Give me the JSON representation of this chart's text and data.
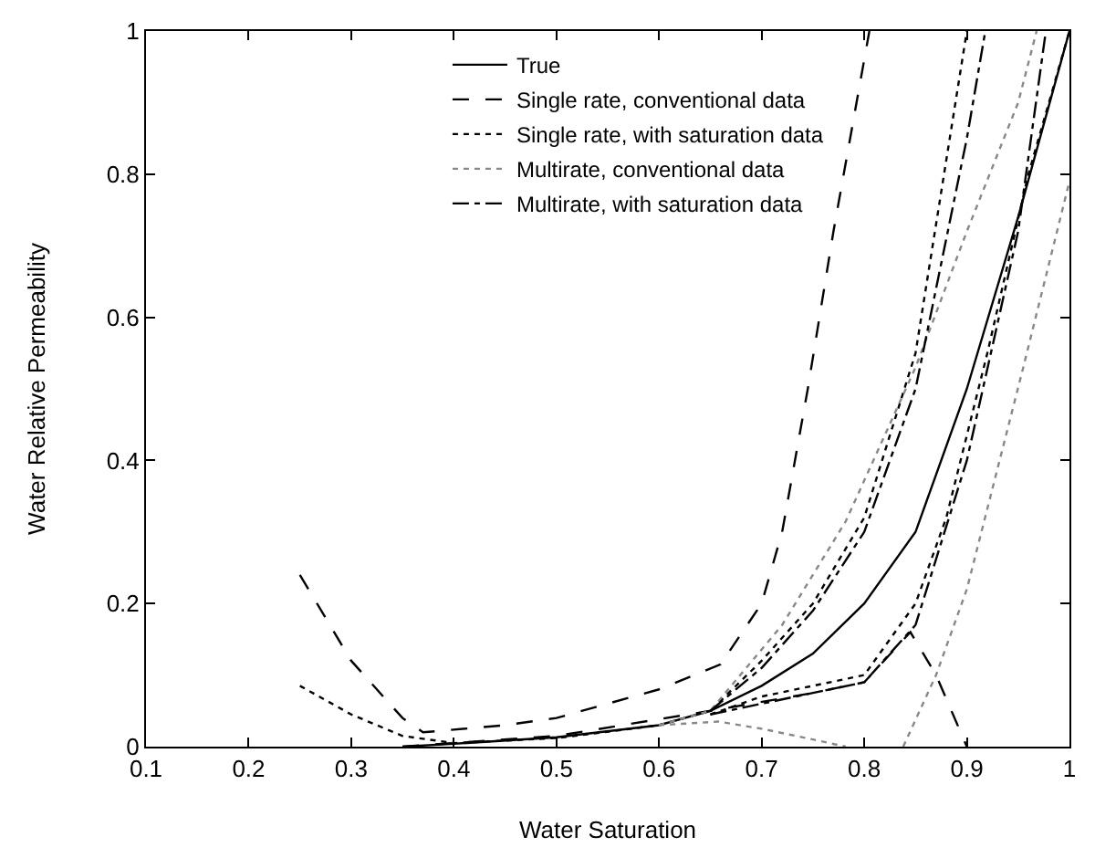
{
  "chart_data": {
    "type": "line",
    "xlabel": "Water Saturation",
    "ylabel": "Water Relative Permeability",
    "xlim": [
      0.1,
      1
    ],
    "xticks": [
      0.1,
      0.2,
      0.3,
      0.4,
      0.5,
      0.6,
      0.7,
      0.8,
      0.9,
      1
    ],
    "ylim": [
      0,
      1
    ],
    "yticks": [
      0,
      0.2,
      0.4,
      0.6,
      0.8,
      1
    ],
    "legend": "top right",
    "marker": "none",
    "series": [
      {
        "name": "True",
        "color": "#000000",
        "line_style": "solid",
        "x": [
          0.35,
          0.4,
          0.5,
          0.6,
          0.65,
          0.7,
          0.75,
          0.8,
          0.85,
          0.9,
          0.95,
          1.0
        ],
        "values": [
          0,
          0.004,
          0.013,
          0.03,
          0.05,
          0.085,
          0.13,
          0.2,
          0.3,
          0.5,
          0.74,
          1.0
        ]
      },
      {
        "name": "Single rate, conventional data",
        "color": "#000000",
        "line_style": "dashed",
        "x": [
          0.25,
          0.3,
          0.35,
          0.37,
          0.45,
          0.5,
          0.6,
          0.66,
          0.7,
          0.72,
          0.745,
          0.77,
          0.805
        ],
        "values": [
          0.24,
          0.12,
          0.04,
          0.02,
          0.03,
          0.04,
          0.08,
          0.115,
          0.2,
          0.3,
          0.5,
          0.72,
          1.0
        ]
      },
      {
        "color": "#000000",
        "line_style": "dashed",
        "x": [
          0.35,
          0.5,
          0.65,
          0.75,
          0.8,
          0.845,
          0.87,
          0.9
        ],
        "values": [
          0,
          0.015,
          0.05,
          0.075,
          0.09,
          0.16,
          0.1,
          0
        ]
      },
      {
        "name": "Single rate, with saturation data",
        "color": "#000000",
        "line_style": "dotted",
        "x": [
          0.25,
          0.3,
          0.35,
          0.4,
          0.5,
          0.6,
          0.65,
          0.7,
          0.75,
          0.8,
          0.85,
          0.9
        ],
        "values": [
          0.085,
          0.045,
          0.015,
          0.005,
          0.012,
          0.03,
          0.05,
          0.12,
          0.2,
          0.32,
          0.55,
          1.0
        ]
      },
      {
        "color": "#000000",
        "line_style": "dotted",
        "x": [
          0.65,
          0.7,
          0.75,
          0.8,
          0.85,
          0.88,
          0.92,
          0.96,
          1.0
        ],
        "values": [
          0.045,
          0.07,
          0.085,
          0.1,
          0.2,
          0.32,
          0.55,
          0.8,
          1.0
        ]
      },
      {
        "name": "Multirate, conventional data",
        "color": "#888888",
        "line_style": "dotted",
        "x": [
          0.6,
          0.65,
          0.72,
          0.782,
          0.85,
          0.9,
          0.95,
          0.968
        ],
        "values": [
          0.03,
          0.05,
          0.17,
          0.315,
          0.53,
          0.72,
          0.9,
          1.0
        ]
      },
      {
        "color": "#888888",
        "line_style": "dotted",
        "x": [
          0.838,
          0.87,
          0.9,
          0.955,
          1.0
        ],
        "values": [
          0,
          0.1,
          0.22,
          0.53,
          0.79
        ]
      },
      {
        "color": "#888888",
        "line_style": "dotted",
        "x": [
          0.6,
          0.658,
          0.7,
          0.75,
          0.782
        ],
        "values": [
          0.03,
          0.035,
          0.025,
          0.01,
          0
        ]
      },
      {
        "name": "Multirate, with saturation data",
        "color": "#000000",
        "line_style": "dashdot",
        "x": [
          0.65,
          0.7,
          0.75,
          0.8,
          0.85,
          0.9,
          0.918
        ],
        "values": [
          0.05,
          0.11,
          0.19,
          0.3,
          0.5,
          0.85,
          1.0
        ]
      },
      {
        "color": "#000000",
        "line_style": "dashdot",
        "x": [
          0.65,
          0.7,
          0.75,
          0.8,
          0.85,
          0.9,
          0.95,
          0.977
        ],
        "values": [
          0.045,
          0.06,
          0.075,
          0.09,
          0.17,
          0.4,
          0.72,
          1.0
        ]
      }
    ]
  }
}
